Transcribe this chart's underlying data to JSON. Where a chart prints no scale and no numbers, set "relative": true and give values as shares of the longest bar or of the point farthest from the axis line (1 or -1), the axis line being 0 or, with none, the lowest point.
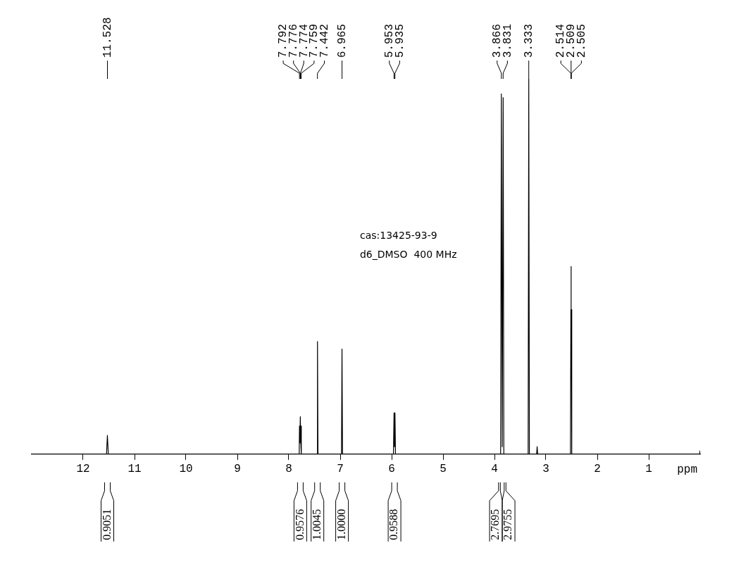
{
  "chart_data": {
    "type": "line",
    "relative": true,
    "xlabel": "ppm",
    "xlim": [
      13,
      0
    ],
    "xticks": [
      12,
      11,
      10,
      9,
      8,
      7,
      6,
      5,
      4,
      3,
      2,
      1
    ],
    "grid": false,
    "legend": false,
    "marker": "none",
    "line_style": "solid",
    "x": [
      13,
      11.6,
      11.545,
      11.528,
      11.51,
      11.45,
      7.81,
      7.797,
      7.792,
      7.784,
      7.776,
      7.775,
      7.774,
      7.766,
      7.759,
      7.754,
      7.74,
      7.452,
      7.442,
      7.432,
      6.975,
      6.965,
      6.955,
      5.965,
      5.953,
      5.944,
      5.935,
      5.925,
      3.88,
      3.866,
      3.849,
      3.831,
      3.818,
      3.345,
      3.333,
      3.321,
      3.18,
      3.17,
      3.16,
      2.522,
      2.514,
      2.511,
      2.509,
      2.507,
      2.505,
      2.497,
      0.01,
      0
    ],
    "series": [
      {
        "color": "#000000",
        "values": [
          0,
          0,
          0,
          0.05,
          0,
          0,
          0,
          0,
          0.075,
          0.03,
          0.1,
          0.1,
          0.1,
          0.03,
          0.075,
          0,
          0,
          0,
          0.3,
          0,
          0,
          0.28,
          0,
          0,
          0.11,
          0.02,
          0.11,
          0,
          0,
          0.96,
          0.02,
          0.95,
          0,
          0,
          1,
          0,
          0,
          0.02,
          0,
          0,
          0.385,
          0.2,
          0.5,
          0.2,
          0.385,
          0,
          0,
          0.01
        ]
      }
    ],
    "annotations": [
      "11.528",
      "7.792",
      "7.776",
      "7.774",
      "7.759",
      "7.442",
      "6.965",
      "5.953",
      "5.935",
      "3.866",
      "3.831",
      "3.333",
      "2.514",
      "2.509",
      "2.505",
      "0.9051",
      "0.9576",
      "1.0045",
      "1.0000",
      "0.9588",
      "2.7695",
      "2.9755",
      "cas:13425-93-9",
      "d6_DMSO  400 MHz"
    ]
  }
}
